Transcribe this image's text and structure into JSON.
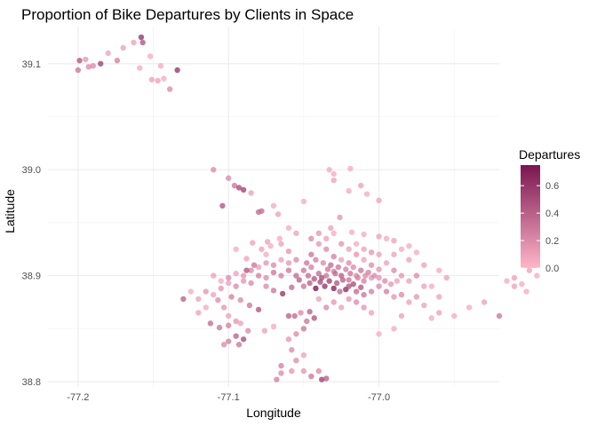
{
  "chart_data": {
    "type": "scatter",
    "title": "Proportion of Bike Departures by Clients in Space",
    "xlabel": "Longitude",
    "ylabel": "Latitude",
    "xlim": [
      -77.22,
      -76.92
    ],
    "ylim": [
      38.795,
      39.135
    ],
    "xticks": [
      {
        "value": -77.2,
        "label": "-77.2"
      },
      {
        "value": -77.1,
        "label": "-77.1"
      },
      {
        "value": -77.0,
        "label": "-77.0"
      }
    ],
    "yticks": [
      {
        "value": 38.8,
        "label": "38.8"
      },
      {
        "value": 38.9,
        "label": "38.9"
      },
      {
        "value": 39.0,
        "label": "39.0"
      },
      {
        "value": 39.1,
        "label": "39.1"
      }
    ],
    "grid": true,
    "legend": {
      "title": "Departures",
      "position": "right",
      "range": [
        0,
        0.75
      ],
      "ticks": [
        {
          "value": 0.0,
          "label": "0.0"
        },
        {
          "value": 0.2,
          "label": "0.2"
        },
        {
          "value": 0.4,
          "label": "0.4"
        },
        {
          "value": 0.6,
          "label": "0.6"
        }
      ],
      "color_low": "#ffb6c8",
      "color_high": "#7a1550"
    },
    "points": [
      [
        -77.199,
        39.103,
        0.45
      ],
      [
        -77.2,
        39.094,
        0.3
      ],
      [
        -77.195,
        39.104,
        0.15
      ],
      [
        -77.19,
        39.098,
        0.2
      ],
      [
        -77.185,
        39.1,
        0.55
      ],
      [
        -77.18,
        39.11,
        0.1
      ],
      [
        -77.174,
        39.103,
        0.25
      ],
      [
        -77.17,
        39.115,
        0.1
      ],
      [
        -77.163,
        39.12,
        0.1
      ],
      [
        -77.158,
        39.125,
        0.6
      ],
      [
        -77.157,
        39.12,
        0.45
      ],
      [
        -77.159,
        39.096,
        0.05
      ],
      [
        -77.152,
        39.107,
        0.05
      ],
      [
        -77.151,
        39.085,
        0.1
      ],
      [
        -77.147,
        39.084,
        0.1
      ],
      [
        -77.143,
        39.086,
        0.05
      ],
      [
        -77.139,
        39.076,
        0.2
      ],
      [
        -77.134,
        39.094,
        0.6
      ],
      [
        -77.145,
        39.098,
        0.05
      ],
      [
        -77.193,
        39.097,
        0.2
      ],
      [
        -77.11,
        39.0,
        0.2
      ],
      [
        -77.1,
        38.992,
        0.2
      ],
      [
        -77.096,
        38.985,
        0.3
      ],
      [
        -77.093,
        38.983,
        0.5
      ],
      [
        -77.09,
        38.981,
        0.55
      ],
      [
        -77.104,
        38.966,
        0.45
      ],
      [
        -77.08,
        38.96,
        0.35
      ],
      [
        -77.078,
        38.961,
        0.35
      ],
      [
        -77.085,
        38.978,
        0.1
      ],
      [
        -77.07,
        38.966,
        0.05
      ],
      [
        -77.067,
        38.958,
        0.1
      ],
      [
        -77.05,
        38.97,
        0.05
      ],
      [
        -77.033,
        39.0,
        0.05
      ],
      [
        -77.03,
        38.996,
        0.05
      ],
      [
        -77.019,
        39.001,
        0.05
      ],
      [
        -77.03,
        38.99,
        0.1
      ],
      [
        -77.02,
        38.98,
        0.05
      ],
      [
        -77.012,
        38.985,
        0.1
      ],
      [
        -77.008,
        38.977,
        0.05
      ],
      [
        -77.0,
        38.971,
        0.1
      ],
      [
        -77.026,
        38.955,
        0.15
      ],
      [
        -77.032,
        38.945,
        0.1
      ],
      [
        -77.018,
        38.941,
        0.05
      ],
      [
        -77.01,
        38.939,
        0.05
      ],
      [
        -77.0,
        38.937,
        0.1
      ],
      [
        -76.995,
        38.935,
        0.05
      ],
      [
        -76.99,
        38.933,
        0.1
      ],
      [
        -76.98,
        38.928,
        0.05
      ],
      [
        -77.06,
        38.945,
        0.05
      ],
      [
        -77.055,
        38.94,
        0.1
      ],
      [
        -77.066,
        38.935,
        0.05
      ],
      [
        -77.074,
        38.932,
        0.1
      ],
      [
        -77.084,
        38.931,
        0.1
      ],
      [
        -77.095,
        38.925,
        0.05
      ],
      [
        -77.088,
        38.916,
        0.1
      ],
      [
        -77.06,
        38.923,
        0.15
      ],
      [
        -77.04,
        38.93,
        0.15
      ],
      [
        -77.035,
        38.925,
        0.2
      ],
      [
        -77.045,
        38.92,
        0.3
      ],
      [
        -77.03,
        38.918,
        0.25
      ],
      [
        -77.025,
        38.915,
        0.1
      ],
      [
        -77.02,
        38.912,
        0.2
      ],
      [
        -77.015,
        38.92,
        0.15
      ],
      [
        -77.01,
        38.915,
        0.1
      ],
      [
        -77.005,
        38.91,
        0.2
      ],
      [
        -77.0,
        38.906,
        0.15
      ],
      [
        -76.995,
        38.912,
        0.1
      ],
      [
        -76.99,
        38.905,
        0.2
      ],
      [
        -76.985,
        38.9,
        0.15
      ],
      [
        -76.98,
        38.895,
        0.1
      ],
      [
        -76.975,
        38.9,
        0.2
      ],
      [
        -76.97,
        38.89,
        0.1
      ],
      [
        -77.05,
        38.905,
        0.3
      ],
      [
        -77.045,
        38.908,
        0.25
      ],
      [
        -77.04,
        38.902,
        0.35
      ],
      [
        -77.035,
        38.9,
        0.3
      ],
      [
        -77.03,
        38.904,
        0.25
      ],
      [
        -77.025,
        38.9,
        0.4
      ],
      [
        -77.02,
        38.896,
        0.3
      ],
      [
        -77.015,
        38.9,
        0.2
      ],
      [
        -77.01,
        38.895,
        0.25
      ],
      [
        -77.005,
        38.898,
        0.15
      ],
      [
        -77.055,
        38.9,
        0.35
      ],
      [
        -77.06,
        38.905,
        0.3
      ],
      [
        -77.065,
        38.9,
        0.25
      ],
      [
        -77.07,
        38.903,
        0.3
      ],
      [
        -77.075,
        38.898,
        0.2
      ],
      [
        -77.08,
        38.9,
        0.25
      ],
      [
        -77.038,
        38.898,
        0.5
      ],
      [
        -77.033,
        38.895,
        0.55
      ],
      [
        -77.028,
        38.893,
        0.45
      ],
      [
        -77.036,
        38.89,
        0.6
      ],
      [
        -77.042,
        38.888,
        0.75
      ],
      [
        -77.03,
        38.888,
        0.7
      ],
      [
        -77.022,
        38.887,
        0.65
      ],
      [
        -77.017,
        38.892,
        0.5
      ],
      [
        -77.012,
        38.889,
        0.45
      ],
      [
        -77.026,
        38.885,
        0.35
      ],
      [
        -77.046,
        38.893,
        0.4
      ],
      [
        -77.05,
        38.89,
        0.3
      ],
      [
        -77.058,
        38.889,
        0.35
      ],
      [
        -77.064,
        38.883,
        0.6
      ],
      [
        -77.07,
        38.886,
        0.3
      ],
      [
        -77.075,
        38.89,
        0.2
      ],
      [
        -77.085,
        38.893,
        0.2
      ],
      [
        -77.09,
        38.895,
        0.15
      ],
      [
        -77.095,
        38.89,
        0.2
      ],
      [
        -77.1,
        38.893,
        0.1
      ],
      [
        -77.105,
        38.888,
        0.15
      ],
      [
        -77.11,
        38.882,
        0.1
      ],
      [
        -77.115,
        38.885,
        0.15
      ],
      [
        -77.12,
        38.878,
        0.1
      ],
      [
        -77.098,
        38.88,
        0.25
      ],
      [
        -77.092,
        38.877,
        0.2
      ],
      [
        -77.086,
        38.872,
        0.3
      ],
      [
        -77.08,
        38.868,
        0.45
      ],
      [
        -77.107,
        38.877,
        0.2
      ],
      [
        -77.103,
        38.87,
        0.15
      ],
      [
        -77.1,
        38.862,
        0.1
      ],
      [
        -77.095,
        38.857,
        0.15
      ],
      [
        -77.112,
        38.855,
        0.35
      ],
      [
        -77.106,
        38.851,
        0.3
      ],
      [
        -77.1,
        38.853,
        0.25
      ],
      [
        -77.092,
        38.855,
        0.1
      ],
      [
        -77.087,
        38.848,
        0.2
      ],
      [
        -77.095,
        38.843,
        0.4
      ],
      [
        -77.09,
        38.84,
        0.5
      ],
      [
        -77.093,
        38.835,
        0.3
      ],
      [
        -77.103,
        38.835,
        0.2
      ],
      [
        -77.1,
        38.838,
        0.25
      ],
      [
        -77.076,
        38.848,
        0.1
      ],
      [
        -77.07,
        38.852,
        0.05
      ],
      [
        -77.06,
        38.862,
        0.4
      ],
      [
        -77.056,
        38.862,
        0.35
      ],
      [
        -77.052,
        38.865,
        0.2
      ],
      [
        -77.046,
        38.866,
        0.4
      ],
      [
        -77.048,
        38.857,
        0.3
      ],
      [
        -77.043,
        38.86,
        0.45
      ],
      [
        -77.05,
        38.85,
        0.3
      ],
      [
        -77.055,
        38.845,
        0.2
      ],
      [
        -77.06,
        38.84,
        0.15
      ],
      [
        -77.058,
        38.83,
        0.2
      ],
      [
        -77.05,
        38.825,
        0.1
      ],
      [
        -77.055,
        38.82,
        0.2
      ],
      [
        -77.065,
        38.815,
        0.25
      ],
      [
        -77.058,
        38.81,
        0.15
      ],
      [
        -77.05,
        38.81,
        0.15
      ],
      [
        -77.045,
        38.805,
        0.3
      ],
      [
        -77.038,
        38.802,
        0.55
      ],
      [
        -77.04,
        38.81,
        0.2
      ],
      [
        -77.035,
        38.803,
        0.4
      ],
      [
        -77.065,
        38.808,
        0.2
      ],
      [
        -77.068,
        38.802,
        0.25
      ],
      [
        -77.0,
        38.89,
        0.2
      ],
      [
        -76.995,
        38.885,
        0.25
      ],
      [
        -76.99,
        38.88,
        0.15
      ],
      [
        -76.985,
        38.882,
        0.2
      ],
      [
        -76.98,
        38.875,
        0.1
      ],
      [
        -76.975,
        38.88,
        0.15
      ],
      [
        -76.97,
        38.872,
        0.1
      ],
      [
        -76.965,
        38.86,
        0.05
      ],
      [
        -76.96,
        38.865,
        0.1
      ],
      [
        -76.95,
        38.862,
        0.05
      ],
      [
        -76.94,
        38.87,
        0.05
      ],
      [
        -76.93,
        38.875,
        0.1
      ],
      [
        -76.92,
        38.862,
        0.3
      ],
      [
        -76.915,
        38.895,
        0.05
      ],
      [
        -76.91,
        38.898,
        0.1
      ],
      [
        -76.905,
        38.892,
        0.05
      ],
      [
        -76.9,
        38.905,
        0.1
      ],
      [
        -76.895,
        38.9,
        0.05
      ],
      [
        -76.902,
        38.885,
        0.05
      ],
      [
        -76.91,
        38.89,
        0.1
      ],
      [
        -77.0,
        38.845,
        0.05
      ],
      [
        -76.99,
        38.85,
        0.05
      ],
      [
        -76.985,
        38.862,
        0.1
      ],
      [
        -77.005,
        38.865,
        0.1
      ],
      [
        -77.01,
        38.87,
        0.15
      ],
      [
        -77.015,
        38.875,
        0.2
      ],
      [
        -77.02,
        38.878,
        0.15
      ],
      [
        -77.025,
        38.87,
        0.1
      ],
      [
        -77.03,
        38.875,
        0.15
      ],
      [
        -77.035,
        38.87,
        0.2
      ],
      [
        -77.04,
        38.878,
        0.1
      ],
      [
        -76.99,
        38.92,
        0.1
      ],
      [
        -76.985,
        38.925,
        0.05
      ],
      [
        -76.98,
        38.915,
        0.1
      ],
      [
        -76.975,
        38.922,
        0.05
      ],
      [
        -76.97,
        38.91,
        0.1
      ],
      [
        -76.96,
        38.905,
        0.05
      ],
      [
        -76.955,
        38.898,
        0.1
      ],
      [
        -76.965,
        38.89,
        0.05
      ],
      [
        -76.96,
        38.88,
        0.1
      ],
      [
        -77.045,
        38.935,
        0.2
      ],
      [
        -77.04,
        38.94,
        0.15
      ],
      [
        -77.035,
        38.935,
        0.1
      ],
      [
        -77.03,
        38.94,
        0.05
      ],
      [
        -77.025,
        38.93,
        0.15
      ],
      [
        -77.02,
        38.925,
        0.1
      ],
      [
        -77.015,
        38.93,
        0.05
      ],
      [
        -77.01,
        38.925,
        0.1
      ],
      [
        -77.005,
        38.922,
        0.15
      ],
      [
        -77.0,
        38.92,
        0.1
      ],
      [
        -77.055,
        38.915,
        0.2
      ],
      [
        -77.06,
        38.912,
        0.15
      ],
      [
        -77.065,
        38.915,
        0.1
      ],
      [
        -77.07,
        38.91,
        0.2
      ],
      [
        -77.075,
        38.912,
        0.15
      ],
      [
        -77.08,
        38.908,
        0.1
      ],
      [
        -77.085,
        38.905,
        0.2
      ],
      [
        -77.09,
        38.9,
        0.15
      ],
      [
        -77.095,
        38.902,
        0.1
      ],
      [
        -77.1,
        38.898,
        0.2
      ],
      [
        -77.105,
        38.895,
        0.05
      ],
      [
        -77.11,
        38.9,
        0.1
      ],
      [
        -77.125,
        38.885,
        0.05
      ],
      [
        -77.13,
        38.878,
        0.4
      ],
      [
        -77.12,
        38.865,
        0.1
      ],
      [
        -77.115,
        38.87,
        0.05
      ],
      [
        -77.088,
        38.905,
        0.45
      ],
      [
        -77.083,
        38.91,
        0.3
      ],
      [
        -77.075,
        38.92,
        0.05
      ],
      [
        -77.078,
        38.925,
        0.1
      ],
      [
        -77.072,
        38.928,
        0.05
      ],
      [
        -77.065,
        38.93,
        0.1
      ],
      [
        -77.048,
        38.912,
        0.3
      ],
      [
        -77.042,
        38.915,
        0.25
      ],
      [
        -77.037,
        38.912,
        0.2
      ],
      [
        -77.032,
        38.91,
        0.35
      ],
      [
        -77.027,
        38.908,
        0.3
      ],
      [
        -77.022,
        38.906,
        0.25
      ],
      [
        -77.017,
        38.908,
        0.2
      ],
      [
        -77.012,
        38.905,
        0.3
      ],
      [
        -77.007,
        38.903,
        0.25
      ],
      [
        -77.003,
        38.9,
        0.2
      ],
      [
        -77.0,
        38.898,
        0.15
      ],
      [
        -76.996,
        38.895,
        0.2
      ],
      [
        -76.992,
        38.892,
        0.15
      ],
      [
        -76.988,
        38.895,
        0.1
      ],
      [
        -77.053,
        38.896,
        0.4
      ],
      [
        -77.047,
        38.9,
        0.35
      ],
      [
        -77.043,
        38.897,
        0.45
      ],
      [
        -77.039,
        38.894,
        0.5
      ],
      [
        -77.034,
        38.906,
        0.3
      ],
      [
        -77.029,
        38.902,
        0.35
      ],
      [
        -77.024,
        38.896,
        0.4
      ],
      [
        -77.019,
        38.902,
        0.3
      ],
      [
        -77.014,
        38.898,
        0.25
      ],
      [
        -77.009,
        38.9,
        0.2
      ],
      [
        -77.02,
        38.89,
        0.45
      ],
      [
        -77.015,
        38.885,
        0.35
      ],
      [
        -77.01,
        38.882,
        0.3
      ],
      [
        -77.005,
        38.885,
        0.25
      ]
    ]
  }
}
